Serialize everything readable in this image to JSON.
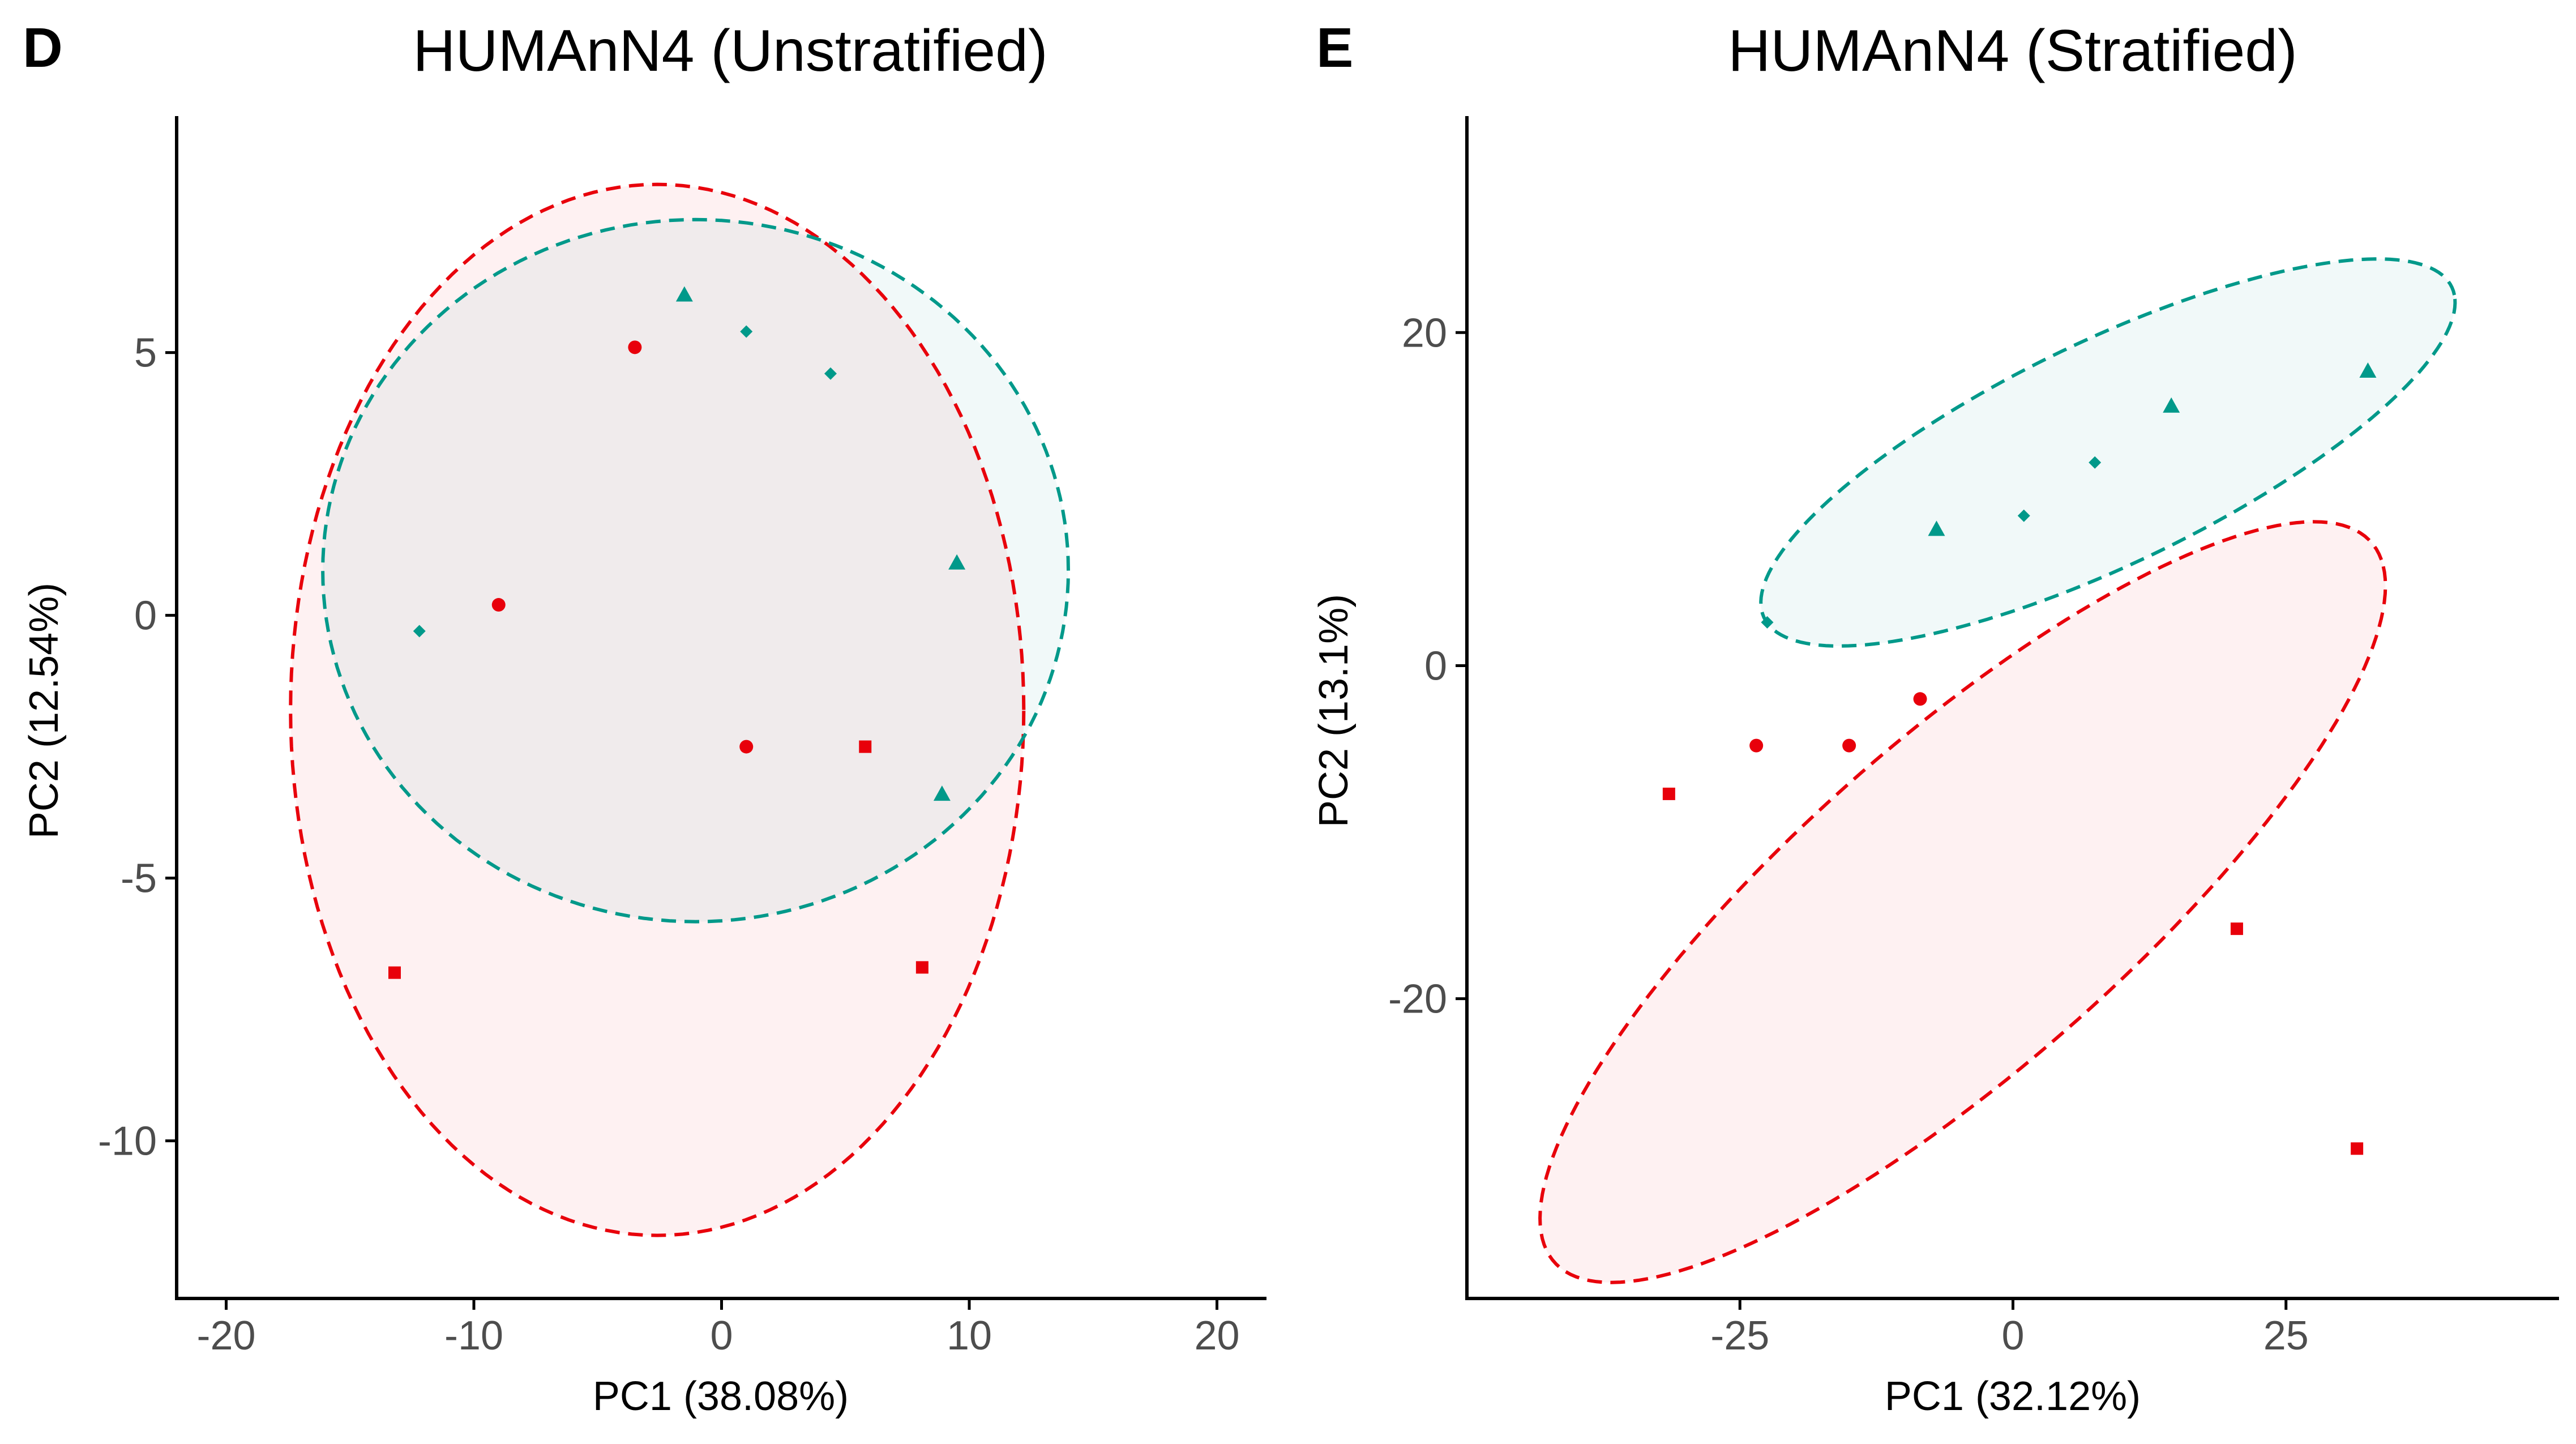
{
  "colors": {
    "groupA": "#e8000b",
    "groupB": "#00998a"
  },
  "charts": [
    {
      "panel_letter": "D",
      "title": "HUMAnN4 (Unstratified)",
      "xlabel": "PC1 (38.08%)",
      "ylabel": "PC2 (12.54%)",
      "xlim": [
        -22,
        22
      ],
      "ylim": [
        -13,
        9.5
      ],
      "xticks": [
        -20,
        -10,
        0,
        10,
        20
      ],
      "xtick_labels": [
        "-20",
        "-10",
        "0",
        "10",
        "20"
      ],
      "yticks": [
        -10,
        -5,
        0,
        5
      ],
      "ytick_labels": [
        "-10",
        "-5",
        "0",
        "5"
      ]
    },
    {
      "panel_letter": "E",
      "title": "HUMAnN4 (Stratified)",
      "xlabel": "PC1 (32.12%)",
      "ylabel": "PC2 (13.1%)",
      "xlim": [
        -50,
        50
      ],
      "ylim": [
        -38,
        33
      ],
      "xticks": [
        -25,
        0,
        25
      ],
      "xtick_labels": [
        "-25",
        "0",
        "25"
      ],
      "yticks": [
        -20,
        0,
        20
      ],
      "ytick_labels": [
        "-20",
        "0",
        "20"
      ]
    }
  ],
  "chart_data": [
    {
      "type": "scatter",
      "title": "HUMAnN4 (Unstratified)",
      "xlabel": "PC1 (38.08%)",
      "ylabel": "PC2 (12.54%)",
      "xlim": [
        -22,
        22
      ],
      "ylim": [
        -13,
        9.5
      ],
      "grid": false,
      "legend": "none",
      "series": [
        {
          "color": "#e8000b",
          "ellipse": {
            "center": [
              -2.6,
              -1.8
            ],
            "rx": 14.8,
            "ry": 10.0,
            "angle": 0
          },
          "points": [
            {
              "x": -3.5,
              "y": 5.1,
              "shape": "circle"
            },
            {
              "x": -9.0,
              "y": 0.2,
              "shape": "circle"
            },
            {
              "x": 1.0,
              "y": -2.5,
              "shape": "circle"
            },
            {
              "x": 5.8,
              "y": -2.5,
              "shape": "square"
            },
            {
              "x": -13.2,
              "y": -6.8,
              "shape": "square"
            },
            {
              "x": 8.1,
              "y": -6.7,
              "shape": "square"
            }
          ]
        },
        {
          "color": "#00998a",
          "ellipse": {
            "center": [
              -1.05,
              0.85
            ],
            "rx": 15.05,
            "ry": 6.68,
            "angle": 0
          },
          "points": [
            {
              "x": -1.5,
              "y": 6.1,
              "shape": "triangle"
            },
            {
              "x": 1.0,
              "y": 5.4,
              "shape": "diamond"
            },
            {
              "x": 4.4,
              "y": 4.6,
              "shape": "diamond"
            },
            {
              "x": 9.5,
              "y": 1.0,
              "shape": "triangle"
            },
            {
              "x": -12.2,
              "y": -0.3,
              "shape": "diamond"
            },
            {
              "x": 8.9,
              "y": -3.4,
              "shape": "triangle"
            }
          ]
        }
      ]
    },
    {
      "type": "scatter",
      "title": "HUMAnN4 (Stratified)",
      "xlabel": "PC1 (32.12%)",
      "ylabel": "PC2 (13.1%)",
      "xlim": [
        -50,
        50
      ],
      "ylim": [
        -38,
        33
      ],
      "grid": false,
      "legend": "none",
      "series": [
        {
          "color": "#e8000b",
          "ellipse": {
            "center": [
              -4.6,
              -14.2
            ],
            "rx": 43.5,
            "ry": 11.3,
            "angle": 28.2
          },
          "points": [
            {
              "x": -31.5,
              "y": -7.7,
              "shape": "square"
            },
            {
              "x": -23.5,
              "y": -4.8,
              "shape": "circle"
            },
            {
              "x": -15.0,
              "y": -4.8,
              "shape": "circle"
            },
            {
              "x": -8.5,
              "y": -2.0,
              "shape": "circle"
            },
            {
              "x": 20.5,
              "y": -15.8,
              "shape": "square"
            },
            {
              "x": 31.5,
              "y": -29.0,
              "shape": "square"
            }
          ]
        },
        {
          "color": "#00998a",
          "ellipse": {
            "center": [
              8.7,
              12.8
            ],
            "rx": 33.1,
            "ry": 7.05,
            "angle": 16.6
          },
          "points": [
            {
              "x": -22.5,
              "y": 2.6,
              "shape": "diamond"
            },
            {
              "x": -7.0,
              "y": 8.2,
              "shape": "triangle"
            },
            {
              "x": 1.0,
              "y": 9.0,
              "shape": "diamond"
            },
            {
              "x": 7.5,
              "y": 12.2,
              "shape": "diamond"
            },
            {
              "x": 14.5,
              "y": 15.6,
              "shape": "triangle"
            },
            {
              "x": 32.5,
              "y": 17.7,
              "shape": "triangle"
            }
          ]
        }
      ]
    }
  ]
}
